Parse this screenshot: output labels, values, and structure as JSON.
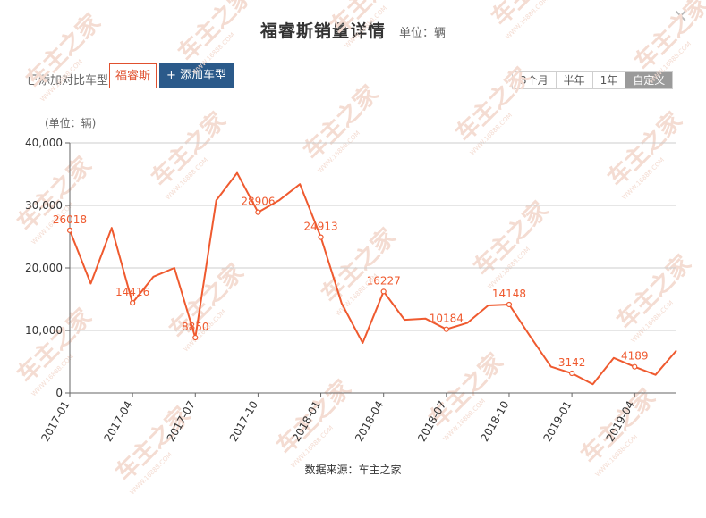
{
  "header": {
    "title": "福睿斯销量详情",
    "unit": "单位：辆"
  },
  "toolbar": {
    "compare_label": "已添加对比车型:",
    "car_tag": "福睿斯",
    "add_button": "+ 添加车型",
    "range_buttons": [
      "3个月",
      "半年",
      "1年",
      "自定义"
    ],
    "active_range": "自定义"
  },
  "footer": {
    "source": "数据来源：车主之家"
  },
  "watermark": {
    "text": "车主之家",
    "url": "WWW.16888.COM"
  },
  "colors": {
    "line": "#ef5a2f",
    "grid": "#cccccc",
    "axis": "#666666",
    "active_range": "#9a9a9a",
    "add_button": "#2b5a8a"
  },
  "chart_data": {
    "type": "line",
    "unit_label": "(单位：辆)",
    "ylim": [
      0,
      40000
    ],
    "yticks": [
      0,
      10000,
      20000,
      30000,
      40000
    ],
    "ytick_labels": [
      "0",
      "10,000",
      "20,000",
      "30,000",
      "40,000"
    ],
    "xtick_labels": [
      "2017-01",
      "2017-04",
      "2017-07",
      "2017-10",
      "2018-01",
      "2018-04",
      "2018-07",
      "2018-10",
      "2019-01",
      "2019-04"
    ],
    "x": [
      "2017-01",
      "2017-02",
      "2017-03",
      "2017-04",
      "2017-05",
      "2017-06",
      "2017-07",
      "2017-08",
      "2017-09",
      "2017-10",
      "2017-11",
      "2017-12",
      "2018-01",
      "2018-02",
      "2018-03",
      "2018-04",
      "2018-05",
      "2018-06",
      "2018-07",
      "2018-08",
      "2018-09",
      "2018-10",
      "2018-11",
      "2018-12",
      "2019-01",
      "2019-02",
      "2019-03",
      "2019-04",
      "2019-05",
      "2019-06"
    ],
    "series": [
      {
        "values": [
          26018,
          17500,
          26400,
          14416,
          18600,
          20000,
          8850,
          30800,
          35200,
          28906,
          30800,
          33400,
          24913,
          14300,
          8000,
          16227,
          11700,
          11900,
          10184,
          11200,
          14000,
          14148,
          9100,
          4200,
          3142,
          1400,
          5600,
          4189,
          2900,
          6800
        ],
        "labeled": {
          "2017-01": "26018",
          "2017-04": "14416",
          "2017-07": "8850",
          "2017-10": "28906",
          "2018-01": "24913",
          "2018-04": "16227",
          "2018-07": "10184",
          "2018-10": "14148",
          "2019-01": "3142",
          "2019-04": "4189"
        }
      }
    ],
    "grid": true
  }
}
